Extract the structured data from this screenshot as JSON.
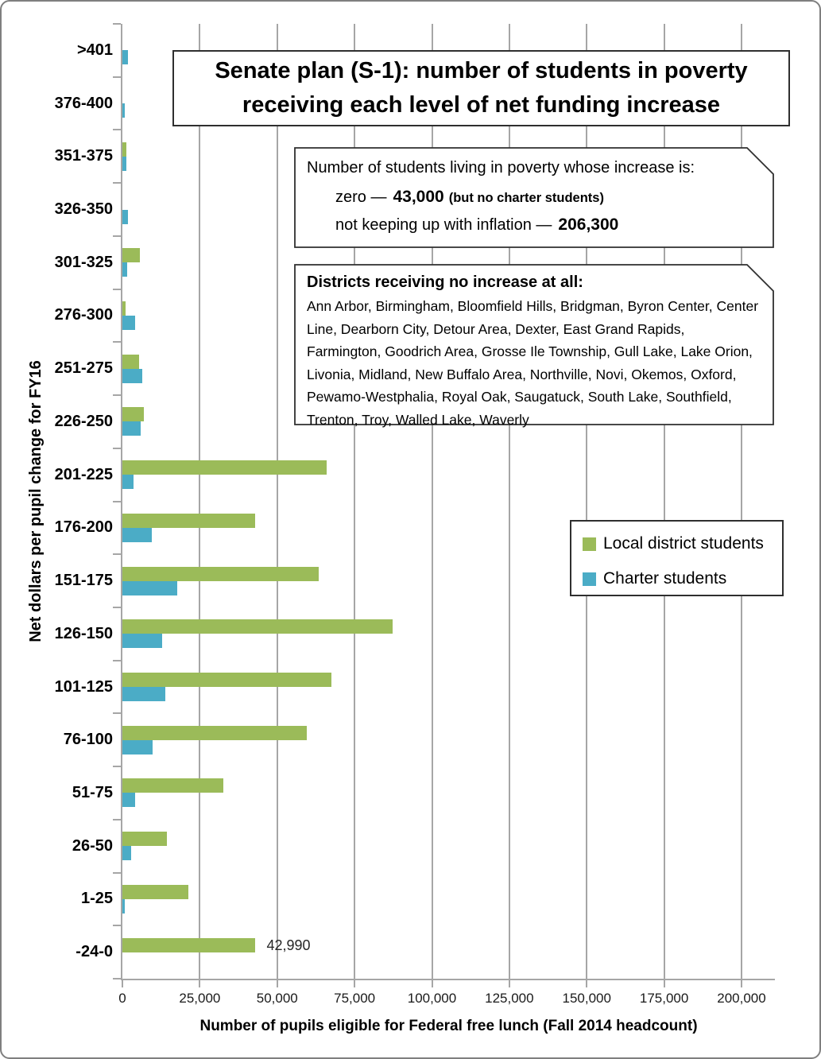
{
  "colors": {
    "local_green": "#9bbb59",
    "charter_blue": "#4bacc6",
    "gridline": "#a6a6a6",
    "frame_border": "#7f7f7f",
    "box_border": "#2f2f2f"
  },
  "chart_data": {
    "type": "bar",
    "orientation": "horizontal",
    "title": "Senate plan (S-1): number of students in poverty receiving each level of net funding increase",
    "xlabel": "Number of pupils eligible for Federal free lunch (Fall 2014 headcount)",
    "ylabel": "Net dollars per pupil change for FY16",
    "categories": [
      ">401",
      "376-400",
      "351-375",
      "326-350",
      "301-325",
      "276-300",
      "251-275",
      "226-250",
      "201-225",
      "176-200",
      "151-175",
      "126-150",
      "101-125",
      "76-100",
      "51-75",
      "26-50",
      "1-25",
      "-24-0"
    ],
    "series": [
      {
        "name": "Local district students",
        "color": "#9bbb59",
        "values": [
          0,
          0,
          1200,
          0,
          5700,
          1000,
          5400,
          7000,
          65900,
          42900,
          63300,
          87300,
          67500,
          59500,
          32600,
          14300,
          21300,
          42990
        ]
      },
      {
        "name": "Charter students",
        "color": "#4bacc6",
        "values": [
          1900,
          700,
          1200,
          1900,
          1500,
          4100,
          6400,
          6000,
          3600,
          9600,
          17700,
          12800,
          13900,
          9800,
          4100,
          2700,
          800,
          0
        ]
      }
    ],
    "x_ticks": [
      "0",
      "25,000",
      "50,000",
      "75,000",
      "100,000",
      "125,000",
      "150,000",
      "175,000",
      "200,000"
    ],
    "xlim": [
      0,
      200000
    ],
    "grid": true,
    "legend_position": "right-middle",
    "data_labels": [
      {
        "category": "-24-0",
        "series": "Local district students",
        "text": "42,990"
      }
    ]
  },
  "annotations": {
    "increase_note": {
      "intro": "Number of students living in poverty whose increase is:",
      "lines": [
        {
          "pre": "zero —",
          "value": "43,000",
          "suffix": "(but no charter students)"
        },
        {
          "pre": "not keeping up with inflation —",
          "value": "206,300",
          "suffix": ""
        }
      ]
    },
    "districts_note": {
      "heading": "Districts receiving no increase at all:",
      "list": "Ann Arbor, Birmingham, Bloomfield Hills, Bridgman, Byron Center, Center Line, Dearborn City, Detour Area, Dexter, East Grand Rapids, Farmington, Goodrich Area, Grosse Ile Township, Gull Lake, Lake Orion, Livonia, Midland, New Buffalo Area, Northville, Novi, Okemos, Oxford, Pewamo-Westphalia, Royal Oak, Saugatuck, South Lake, Southfield, Trenton, Troy, Walled Lake, Waverly"
    }
  }
}
